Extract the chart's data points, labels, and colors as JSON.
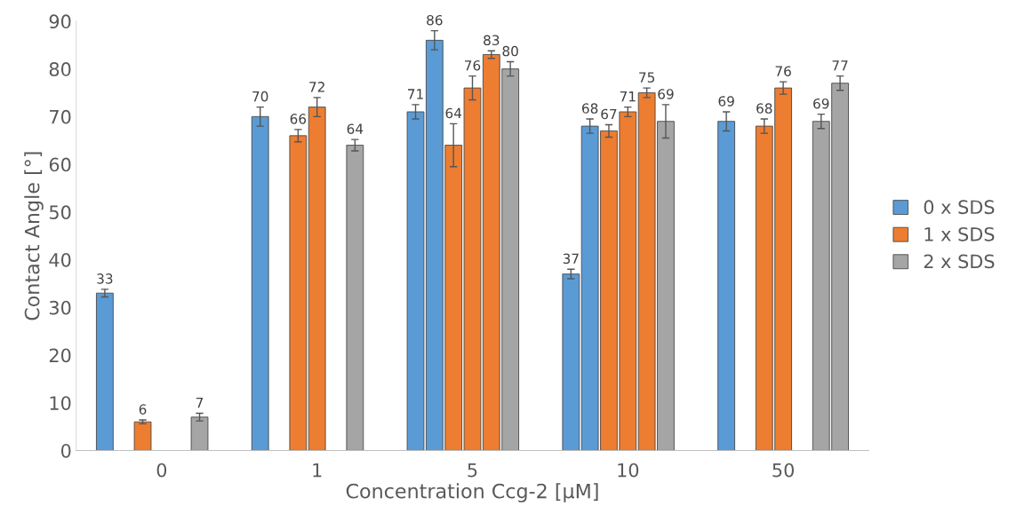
{
  "chart_data": {
    "type": "bar",
    "xlabel": "Concentration Ccg-2 [µM]",
    "ylabel": "Contact Angle [°]",
    "categories": [
      "0",
      "1",
      "5",
      "10",
      "50"
    ],
    "series": [
      {
        "name": "0 x SDS",
        "color": "#5b9bd5",
        "values": [
          33,
          70,
          71,
          37,
          69
        ],
        "errors": [
          0.8,
          2,
          1.5,
          1,
          2
        ]
      },
      {
        "color": "#5b9bd5",
        "values": [
          null,
          null,
          86,
          68,
          null
        ],
        "errors": [
          null,
          null,
          2,
          1.5,
          null
        ]
      },
      {
        "name": "1 x SDS",
        "color": "#ed7d31",
        "values": [
          6,
          66,
          64,
          67,
          68
        ],
        "errors": [
          0.4,
          1.3,
          4.5,
          1.3,
          1.5
        ]
      },
      {
        "color": "#ed7d31",
        "values": [
          null,
          72,
          76,
          71,
          76
        ],
        "errors": [
          null,
          2,
          2.5,
          1,
          1.3
        ]
      },
      {
        "color": "#ed7d31",
        "values": [
          null,
          null,
          83,
          75,
          null
        ],
        "errors": [
          null,
          null,
          0.8,
          1,
          null
        ]
      },
      {
        "name": "2 x SDS",
        "color": "#a5a5a5",
        "values": [
          7,
          64,
          80,
          69,
          69
        ],
        "errors": [
          0.8,
          1.2,
          1.5,
          3.5,
          1.5
        ]
      },
      {
        "color": "#a5a5a5",
        "values": [
          null,
          null,
          null,
          null,
          77
        ],
        "errors": [
          null,
          null,
          null,
          null,
          1.5
        ]
      }
    ],
    "ylim": [
      0,
      90
    ],
    "yticks": [
      0,
      10,
      20,
      30,
      40,
      50,
      60,
      70,
      80,
      90
    ],
    "data_labels": true,
    "grid": false,
    "legend": "right"
  }
}
